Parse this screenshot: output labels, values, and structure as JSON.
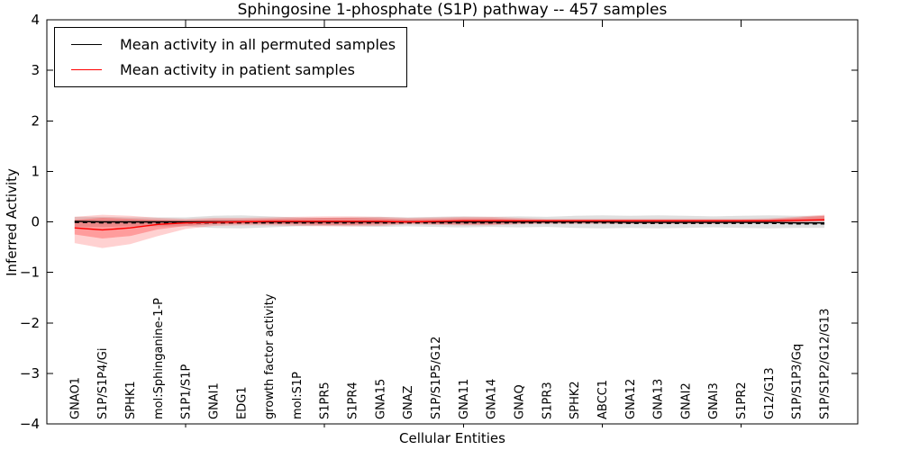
{
  "title": "Sphingosine 1-phosphate (S1P) pathway -- 457 samples",
  "legend": {
    "items": [
      {
        "label": "Mean activity in all permuted samples",
        "color": "#000000"
      },
      {
        "label": "Mean activity in patient samples",
        "color": "#ff0000"
      }
    ]
  },
  "chart_data": {
    "type": "line",
    "title": "Sphingosine 1-phosphate (S1P) pathway -- 457 samples",
    "xlabel": "Cellular Entities",
    "ylabel": "Inferred Activity",
    "ylim": [
      -4,
      4
    ],
    "yticks": [
      -4,
      -3,
      -2,
      -1,
      0,
      1,
      2,
      3,
      4
    ],
    "ytick_labels": [
      "−4",
      "−3",
      "−2",
      "−1",
      "0",
      "1",
      "2",
      "3",
      "4"
    ],
    "xlim": [
      0,
      29.2
    ],
    "xticks": [
      5,
      10,
      15,
      20,
      25
    ],
    "grid": false,
    "legend_position": "upper-left",
    "categories": [
      "GNAO1",
      "S1P/S1P4/Gi",
      "SPHK1",
      "mol:Sphinganine-1-P",
      "S1P1/S1P",
      "GNAI1",
      "EDG1",
      "growth factor activity",
      "mol:S1P",
      "S1PR5",
      "S1PR4",
      "GNA15",
      "GNAZ",
      "S1P/S1P5/G12",
      "GNA11",
      "GNA14",
      "GNAQ",
      "S1PR3",
      "SPHK2",
      "ABCC1",
      "GNA12",
      "GNA13",
      "GNAI2",
      "GNAI3",
      "S1PR2",
      "G12/G13",
      "S1P/S1P3/Gq",
      "S1P/S1P2/G12/G13"
    ],
    "series": [
      {
        "name": "Mean activity in all permuted samples",
        "color": "#000000",
        "style": "solid",
        "values": [
          0.01,
          0.0,
          0.0,
          0.0,
          0.0,
          0.0,
          0.0,
          0.0,
          0.0,
          0.0,
          0.0,
          0.0,
          0.0,
          0.0,
          0.0,
          0.0,
          0.0,
          0.0,
          0.0,
          0.0,
          -0.01,
          -0.01,
          -0.01,
          -0.01,
          -0.01,
          -0.01,
          -0.02,
          -0.02
        ]
      },
      {
        "name": "Permuted mean dashed overlay",
        "color": "#000000",
        "style": "dashed",
        "values": [
          -0.01,
          -0.02,
          -0.02,
          -0.02,
          -0.02,
          -0.02,
          -0.02,
          -0.02,
          -0.02,
          -0.02,
          -0.02,
          -0.02,
          -0.02,
          -0.02,
          -0.02,
          -0.02,
          -0.02,
          -0.02,
          -0.02,
          -0.02,
          -0.03,
          -0.03,
          -0.03,
          -0.03,
          -0.03,
          -0.03,
          -0.04,
          -0.04
        ]
      },
      {
        "name": "Mean activity in patient samples",
        "color": "#ff0000",
        "style": "solid",
        "values": [
          -0.12,
          -0.16,
          -0.12,
          -0.05,
          -0.02,
          -0.01,
          0.0,
          0.01,
          0.01,
          0.01,
          0.01,
          0.01,
          0.0,
          0.01,
          0.02,
          0.02,
          0.02,
          0.02,
          0.02,
          0.02,
          0.02,
          0.02,
          0.02,
          0.02,
          0.02,
          0.02,
          0.03,
          0.04
        ]
      }
    ],
    "bands": [
      {
        "name": "permuted-range",
        "color": "#000000",
        "opacity": 0.12,
        "upper": [
          0.1,
          0.1,
          0.09,
          0.09,
          0.09,
          0.12,
          0.13,
          0.11,
          0.09,
          0.08,
          0.09,
          0.1,
          0.09,
          0.1,
          0.11,
          0.1,
          0.11,
          0.1,
          0.12,
          0.13,
          0.12,
          0.13,
          0.12,
          0.11,
          0.12,
          0.13,
          0.12,
          0.12
        ],
        "lower": [
          -0.1,
          -0.1,
          -0.09,
          -0.09,
          -0.09,
          -0.12,
          -0.13,
          -0.11,
          -0.09,
          -0.08,
          -0.09,
          -0.1,
          -0.09,
          -0.1,
          -0.11,
          -0.1,
          -0.11,
          -0.1,
          -0.12,
          -0.13,
          -0.12,
          -0.13,
          -0.12,
          -0.11,
          -0.12,
          -0.13,
          -0.12,
          -0.12
        ]
      },
      {
        "name": "patient-range-outer",
        "color": "#ff0000",
        "opacity": 0.18,
        "upper": [
          0.1,
          0.14,
          0.12,
          0.08,
          0.06,
          0.08,
          0.08,
          0.09,
          0.1,
          0.11,
          0.11,
          0.1,
          0.08,
          0.09,
          0.1,
          0.1,
          0.08,
          0.06,
          0.06,
          0.06,
          0.06,
          0.06,
          0.06,
          0.06,
          0.06,
          0.07,
          0.1,
          0.14
        ],
        "lower": [
          -0.42,
          -0.52,
          -0.44,
          -0.28,
          -0.14,
          -0.08,
          -0.07,
          -0.07,
          -0.08,
          -0.09,
          -0.09,
          -0.08,
          -0.05,
          -0.06,
          -0.07,
          -0.07,
          -0.05,
          -0.04,
          -0.04,
          -0.04,
          -0.04,
          -0.04,
          -0.04,
          -0.04,
          -0.03,
          -0.02,
          -0.01,
          0.01
        ],
        "_comment": ""
      },
      {
        "name": "patient-range-inner",
        "color": "#ff0000",
        "opacity": 0.25,
        "upper": [
          0.04,
          0.08,
          0.06,
          0.04,
          0.03,
          0.05,
          0.05,
          0.06,
          0.07,
          0.08,
          0.08,
          0.07,
          0.05,
          0.06,
          0.07,
          0.07,
          0.05,
          0.04,
          0.04,
          0.04,
          0.04,
          0.04,
          0.04,
          0.04,
          0.04,
          0.05,
          0.08,
          0.12
        ],
        "lower": [
          -0.25,
          -0.33,
          -0.28,
          -0.15,
          -0.08,
          -0.05,
          -0.04,
          -0.04,
          -0.05,
          -0.06,
          -0.06,
          -0.05,
          -0.03,
          -0.04,
          -0.05,
          -0.05,
          -0.03,
          -0.02,
          -0.02,
          -0.02,
          -0.02,
          -0.02,
          -0.02,
          -0.02,
          -0.01,
          -0.01,
          0.0,
          0.02
        ]
      }
    ]
  }
}
